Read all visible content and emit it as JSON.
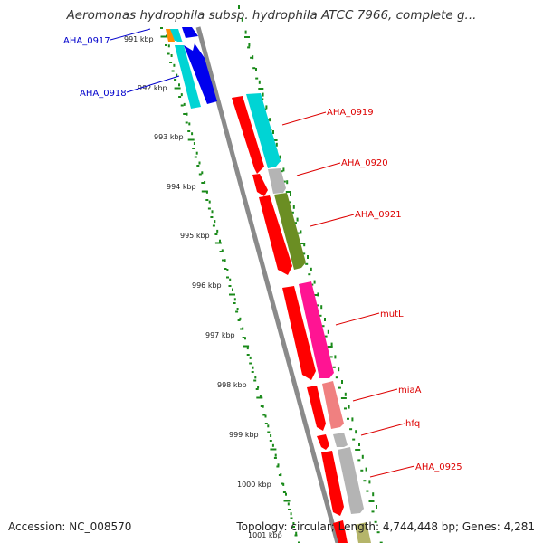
{
  "title": "Aeromonas hydrophila subsp. hydrophila ATCC 7966, complete g...",
  "footer": {
    "accession": "Accession: NC_008570",
    "summary": "Topology: circular; Length: 4,744,448 bp; Genes: 4,281"
  },
  "colors": {
    "background": "#ffffff",
    "backbone": "#8a8a8a",
    "tick_green": "#1a8a1a",
    "label_forward": "#0000cc",
    "label_reverse": "#dd0000",
    "strand_red": "#ff0000",
    "arrow_blue": "#0000ee",
    "arrow_cyan": "#00d4d4",
    "arrow_olive": "#6b8e23",
    "arrow_pink": "#ff1493",
    "arrow_salmon": "#f08080",
    "arrow_grey": "#b4b4b4"
  },
  "ruler": {
    "labels": [
      "991 kbp",
      "992 kbp",
      "993 kbp",
      "994 kbp",
      "995 kbp",
      "996 kbp",
      "997 kbp",
      "998 kbp",
      "999 kbp",
      "1000 kbp",
      "1001 kbp"
    ]
  },
  "genes": [
    {
      "name": "AHA_0917",
      "strand": "forward",
      "color": "#00d4d4"
    },
    {
      "name": "AHA_0918",
      "strand": "forward",
      "color": "#0000ee"
    },
    {
      "name": "AHA_0919",
      "strand": "reverse",
      "color": "#00d4d4"
    },
    {
      "name": "AHA_0920",
      "strand": "reverse",
      "color": "#b4b4b4"
    },
    {
      "name": "AHA_0921",
      "strand": "reverse",
      "color": "#6b8e23"
    },
    {
      "name": "mutL",
      "strand": "reverse",
      "color": "#ff1493"
    },
    {
      "name": "miaA",
      "strand": "reverse",
      "color": "#f08080"
    },
    {
      "name": "hfq",
      "strand": "reverse",
      "color": "#b4b4b4"
    },
    {
      "name": "AHA_0925",
      "strand": "reverse",
      "color": "#b4b4b4"
    }
  ]
}
